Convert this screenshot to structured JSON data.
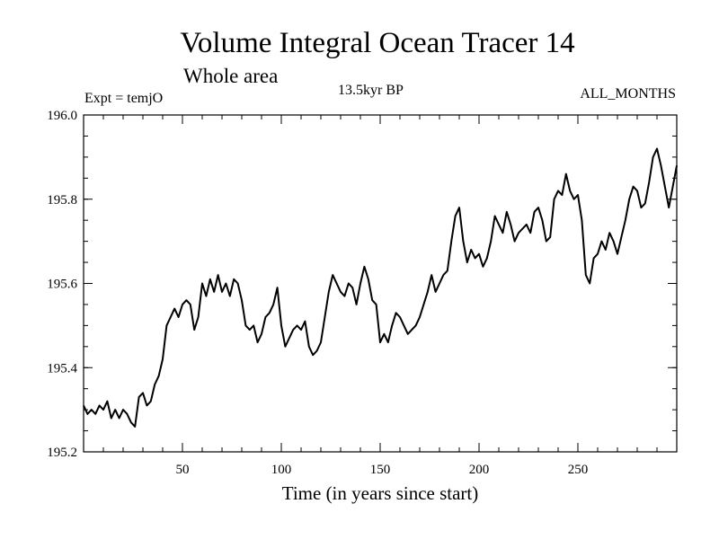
{
  "chart_data": {
    "type": "line",
    "title": "Volume Integral Ocean Tracer 14",
    "subtitle": "Whole area",
    "annotations": {
      "left": "Expt = temjO",
      "center": "13.5kyr BP",
      "right": "ALL_MONTHS"
    },
    "xlabel": "Time (in years since start)",
    "ylabel": "",
    "xlim": [
      0,
      300
    ],
    "ylim": [
      195.2,
      196.0
    ],
    "xticks_major": [
      50,
      100,
      150,
      200,
      250
    ],
    "yticks_major": [
      "195.2",
      "195.4",
      "195.6",
      "195.8",
      "196.0"
    ],
    "x_minor_step": 10,
    "y_minor_step": 0.05,
    "line_color": "#000000",
    "series": [
      {
        "x": [
          0,
          2,
          4,
          6,
          8,
          10,
          12,
          14,
          16,
          18,
          20,
          22,
          24,
          26,
          28,
          30,
          32,
          34,
          36,
          38,
          40,
          42,
          44,
          46,
          48,
          50,
          52,
          54,
          56,
          58,
          60,
          62,
          64,
          66,
          68,
          70,
          72,
          74,
          76,
          78,
          80,
          82,
          84,
          86,
          88,
          90,
          92,
          94,
          96,
          98,
          100,
          102,
          104,
          106,
          108,
          110,
          112,
          114,
          116,
          118,
          120,
          122,
          124,
          126,
          128,
          130,
          132,
          134,
          136,
          138,
          140,
          142,
          144,
          146,
          148,
          150,
          152,
          154,
          156,
          158,
          160,
          162,
          164,
          166,
          168,
          170,
          172,
          174,
          176,
          178,
          180,
          182,
          184,
          186,
          188,
          190,
          192,
          194,
          196,
          198,
          200,
          202,
          204,
          206,
          208,
          210,
          212,
          214,
          216,
          218,
          220,
          222,
          224,
          226,
          228,
          230,
          232,
          234,
          236,
          238,
          240,
          242,
          244,
          246,
          248,
          250,
          252,
          254,
          256,
          258,
          260,
          262,
          264,
          266,
          268,
          270,
          272,
          274,
          276,
          278,
          280,
          282,
          284,
          286,
          288,
          290,
          292,
          294,
          296,
          298,
          300
        ],
        "y": [
          195.31,
          195.29,
          195.3,
          195.29,
          195.31,
          195.3,
          195.32,
          195.28,
          195.3,
          195.28,
          195.3,
          195.29,
          195.27,
          195.26,
          195.33,
          195.34,
          195.31,
          195.32,
          195.36,
          195.38,
          195.42,
          195.5,
          195.52,
          195.54,
          195.52,
          195.55,
          195.56,
          195.55,
          195.49,
          195.52,
          195.6,
          195.57,
          195.61,
          195.58,
          195.62,
          195.58,
          195.6,
          195.57,
          195.61,
          195.6,
          195.56,
          195.5,
          195.49,
          195.5,
          195.46,
          195.48,
          195.52,
          195.53,
          195.55,
          195.59,
          195.5,
          195.45,
          195.47,
          195.49,
          195.5,
          195.49,
          195.51,
          195.45,
          195.43,
          195.44,
          195.46,
          195.52,
          195.58,
          195.62,
          195.6,
          195.58,
          195.57,
          195.6,
          195.59,
          195.55,
          195.6,
          195.64,
          195.61,
          195.56,
          195.55,
          195.46,
          195.48,
          195.46,
          195.5,
          195.53,
          195.52,
          195.5,
          195.48,
          195.49,
          195.5,
          195.52,
          195.55,
          195.58,
          195.62,
          195.58,
          195.6,
          195.62,
          195.63,
          195.7,
          195.76,
          195.78,
          195.7,
          195.65,
          195.68,
          195.66,
          195.67,
          195.64,
          195.66,
          195.7,
          195.76,
          195.74,
          195.72,
          195.77,
          195.74,
          195.7,
          195.72,
          195.73,
          195.74,
          195.72,
          195.77,
          195.78,
          195.75,
          195.7,
          195.71,
          195.8,
          195.82,
          195.81,
          195.86,
          195.82,
          195.8,
          195.81,
          195.75,
          195.62,
          195.6,
          195.66,
          195.67,
          195.7,
          195.68,
          195.72,
          195.7,
          195.67,
          195.71,
          195.75,
          195.8,
          195.83,
          195.82,
          195.78,
          195.79,
          195.84,
          195.9,
          195.92,
          195.88,
          195.83,
          195.78,
          195.83,
          195.88
        ]
      }
    ]
  }
}
